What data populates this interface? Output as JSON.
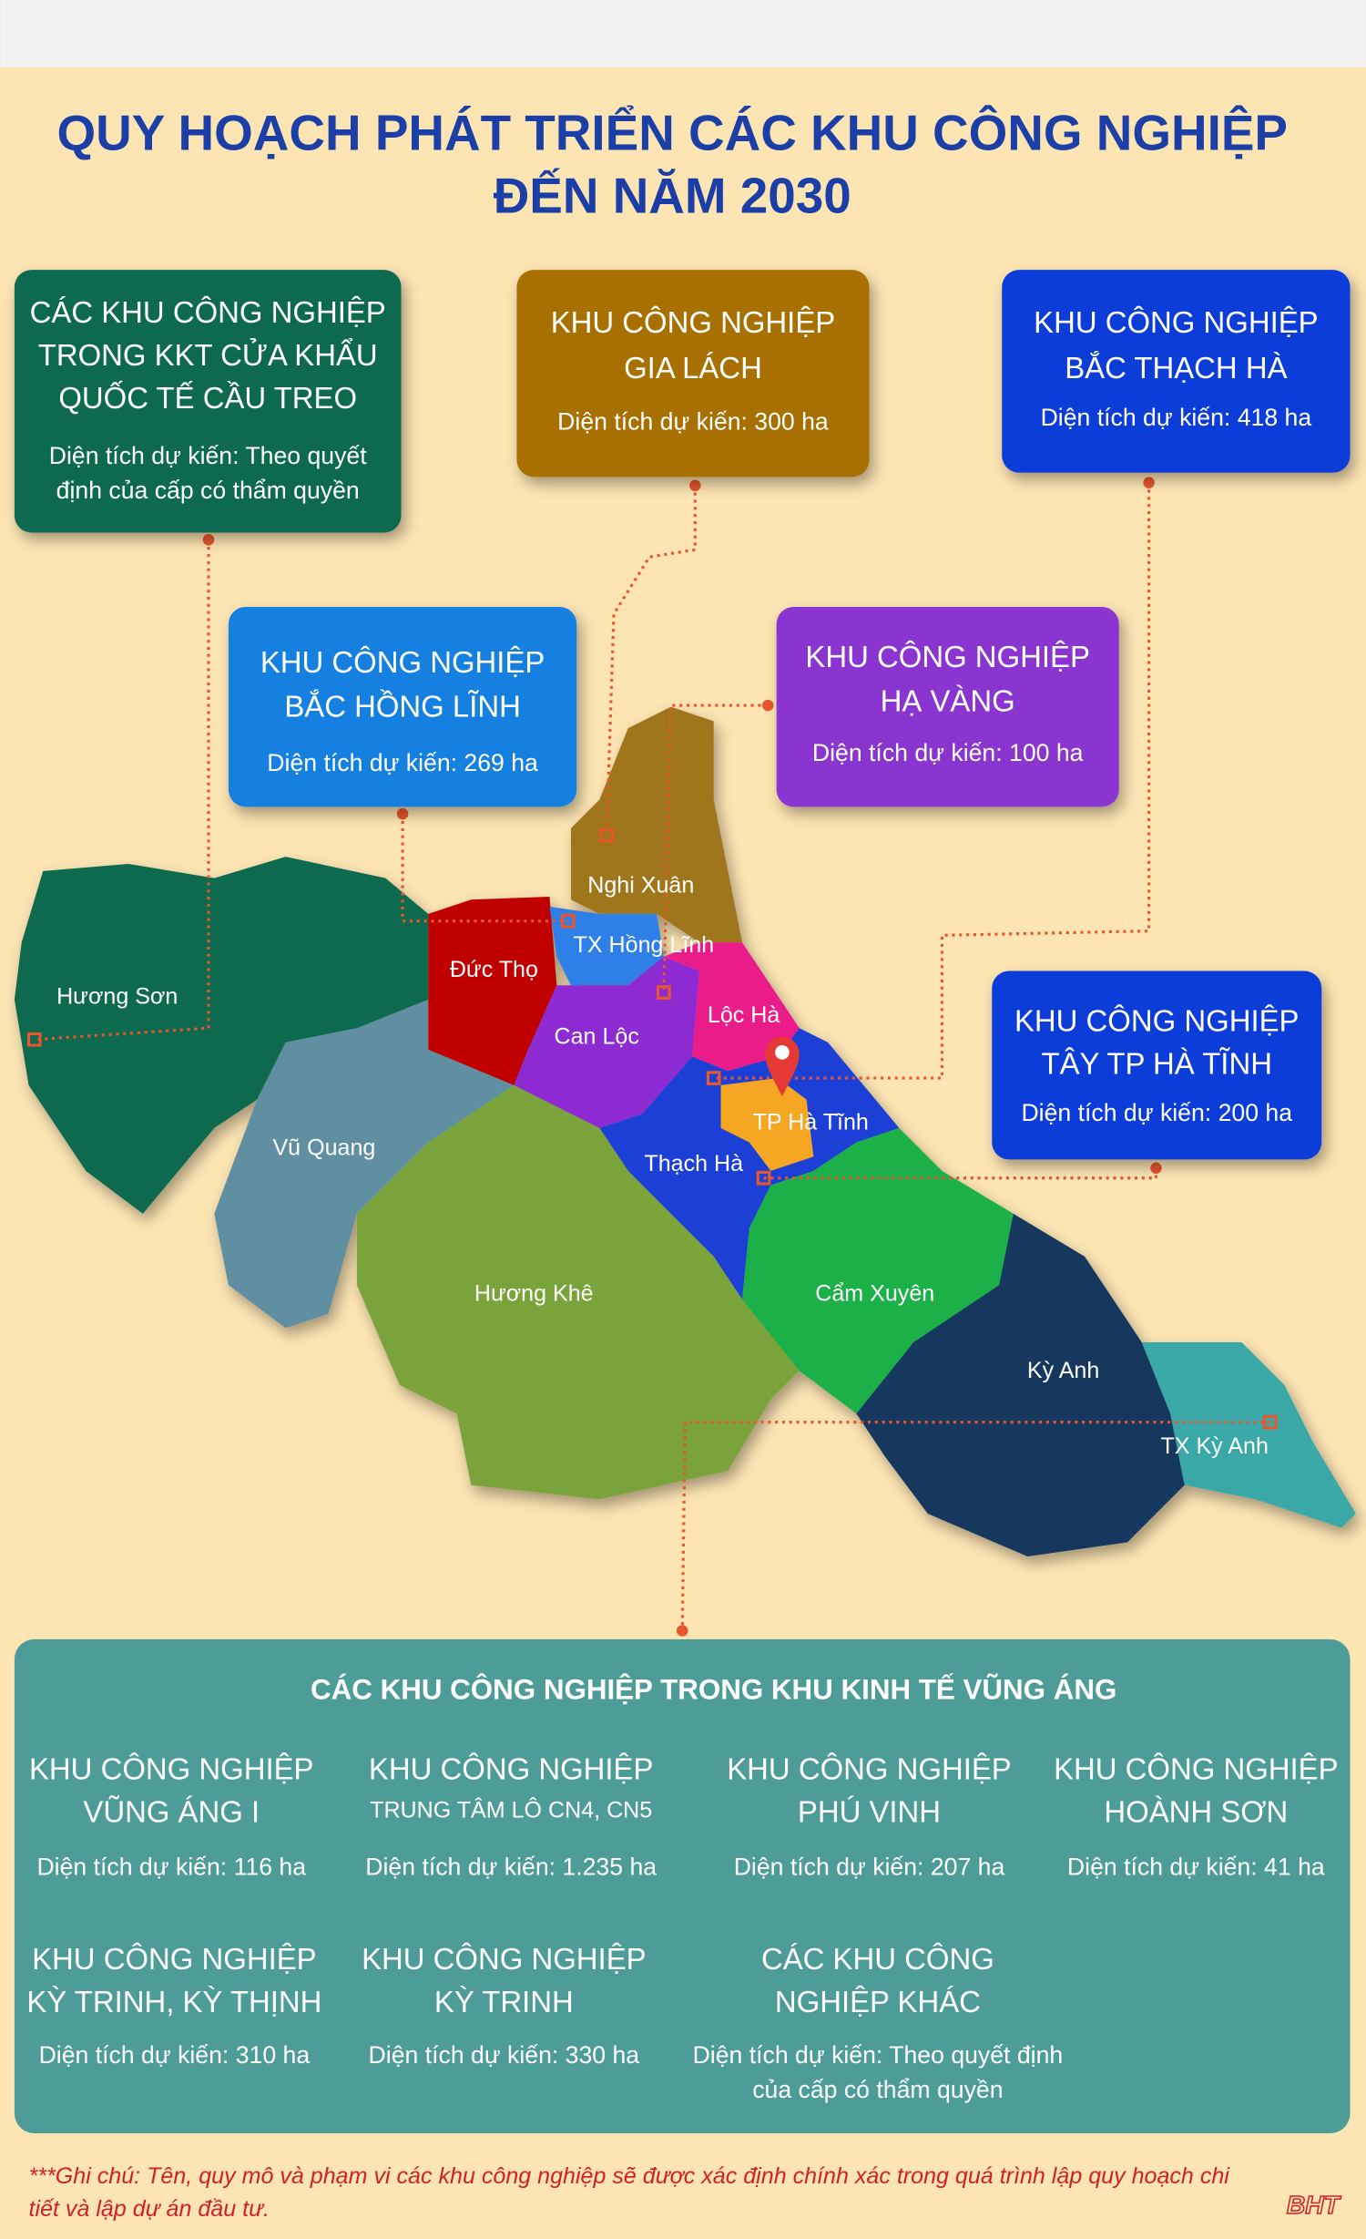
{
  "title": [
    "QUY HOẠCH PHÁT TRIỂN CÁC KHU CÔNG NGHIỆP",
    "ĐẾN NĂM 2030"
  ],
  "callouts": [
    {
      "title": [
        "CÁC KHU CÔNG NGHIỆP",
        "TRONG KKT CỬA KHẨU",
        "QUỐC TẾ CẦU TREO"
      ],
      "area": [
        "Diện tích dự kiến: Theo quyết",
        "định của cấp có thẩm quyền"
      ]
    },
    {
      "title": [
        "KHU CÔNG NGHIỆP",
        "GIA LÁCH"
      ],
      "area": [
        "Diện tích dự kiến: 300 ha"
      ]
    },
    {
      "title": [
        "KHU CÔNG NGHIỆP",
        "BẮC THẠCH HÀ"
      ],
      "area": [
        "Diện tích dự kiến: 418 ha"
      ]
    },
    {
      "title": [
        "KHU CÔNG NGHIỆP",
        "BẮC HỒNG LĨNH"
      ],
      "area": [
        "Diện tích dự kiến: 269 ha"
      ]
    },
    {
      "title": [
        "KHU CÔNG NGHIỆP",
        "HẠ VÀNG"
      ],
      "area": [
        "Diện tích dự kiến: 100 ha"
      ]
    },
    {
      "title": [
        "KHU CÔNG NGHIỆP",
        "TÂY TP HÀ TĨNH"
      ],
      "area": [
        "Diện tích dự kiến: 200 ha"
      ]
    }
  ],
  "map_labels": [
    "Nghi Xuân",
    "TX Hồng Lĩnh",
    "Đức Thọ",
    "Hương Sơn",
    "Lộc Hà",
    "Can Lộc",
    "TP Hà Tĩnh",
    "Vũ Quang",
    "Thạch Hà",
    "Hương Khê",
    "Cẩm Xuyên",
    "Kỳ Anh",
    "TX Kỳ Anh"
  ],
  "vung_ang": {
    "heading": "CÁC KHU CÔNG NGHIỆP TRONG KHU KINH TẾ VŨNG ÁNG",
    "items": [
      {
        "title": [
          "KHU CÔNG NGHIỆP",
          "VŨNG ÁNG I"
        ],
        "area": [
          "Diện tích dự kiến: 116 ha"
        ]
      },
      {
        "title": [
          "KHU CÔNG NGHIỆP",
          "TRUNG TÂM LÔ CN4, CN5"
        ],
        "area": [
          "Diện tích dự kiến: 1.235 ha"
        ]
      },
      {
        "title": [
          "KHU CÔNG NGHIỆP",
          "PHÚ VINH"
        ],
        "area": [
          "Diện tích dự kiến: 207 ha"
        ]
      },
      {
        "title": [
          "KHU CÔNG NGHIỆP",
          "HOÀNH SƠN"
        ],
        "area": [
          "Diện tích dự kiến: 41 ha"
        ]
      },
      {
        "title": [
          "KHU CÔNG NGHIỆP",
          "KỲ TRINH, KỲ THỊNH"
        ],
        "area": [
          "Diện tích dự kiến: 310 ha"
        ]
      },
      {
        "title": [
          "KHU CÔNG NGHIỆP",
          "KỲ TRINH"
        ],
        "area": [
          "Diện tích dự kiến: 330 ha"
        ]
      },
      {
        "title": [
          "CÁC KHU CÔNG",
          "NGHIỆP KHÁC"
        ],
        "area": [
          "Diện tích dự kiến: Theo quyết định",
          "của cấp có thẩm quyền"
        ]
      }
    ]
  },
  "note": [
    "***Ghi chú: Tên, quy mô và phạm vi các khu công nghiệp sẽ được xác định chính xác trong quá trình lập quy hoạch chi",
    "tiết và lập dự án đầu tư."
  ],
  "logo": "BHT"
}
